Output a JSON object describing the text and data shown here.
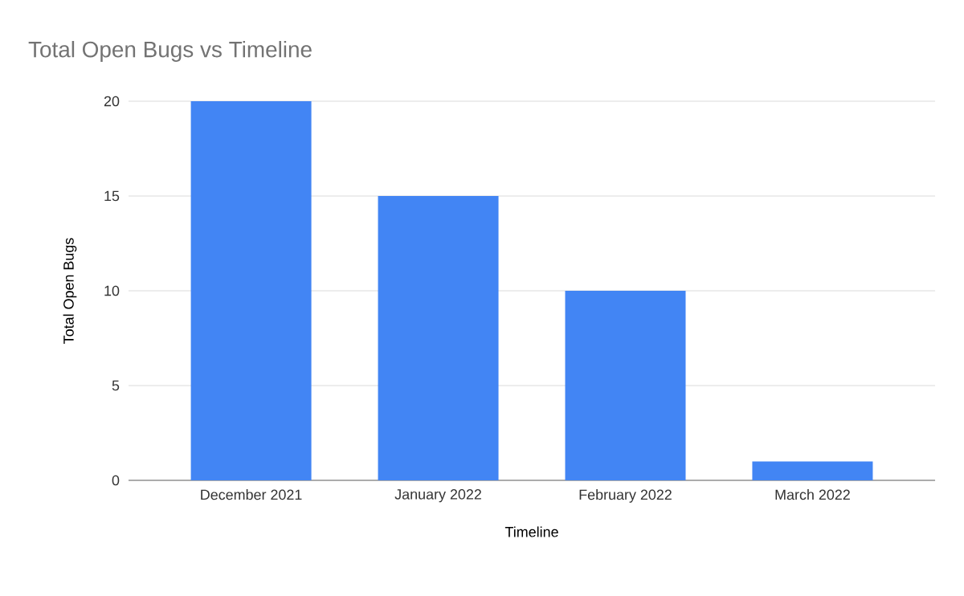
{
  "chart_data": {
    "type": "bar",
    "title": "Total Open Bugs vs Timeline",
    "xlabel": "Timeline",
    "ylabel": "Total Open Bugs",
    "categories": [
      "December 2021",
      "January 2022",
      "February 2022",
      "March 2022"
    ],
    "values": [
      20,
      15,
      10,
      1
    ],
    "color": "#4285f4",
    "ylim": [
      0,
      20
    ],
    "yticks": [
      0,
      5,
      10,
      15,
      20
    ],
    "grid": "y"
  }
}
